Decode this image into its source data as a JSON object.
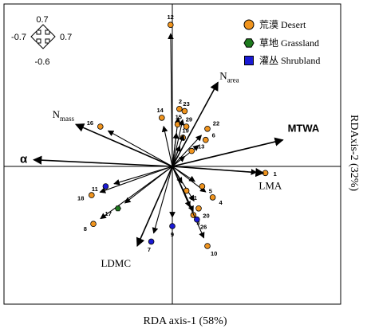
{
  "chart_data": {
    "type": "scatter",
    "subtype": "rda-triplot",
    "xlabel": "RDA axis-1 (58%)",
    "ylabel": "RDAxis-2 (32%)",
    "scale_indicator": {
      "top": "0.7",
      "left": "-0.7",
      "right": "0.7",
      "bottom": "-0.6"
    },
    "xlim": [
      -0.9,
      0.9
    ],
    "ylim": [
      -0.72,
      0.72
    ],
    "legend": {
      "position": "top-right",
      "items": [
        {
          "label": "荒漠 Desert",
          "marker": "circle",
          "color": "#f0941e"
        },
        {
          "label": "草地 Grassland",
          "marker": "hexagon",
          "color": "#1e7a1e"
        },
        {
          "label": "灌丛 Shrubland",
          "marker": "square",
          "color": "#1a1ad4"
        }
      ]
    },
    "trait_vectors": [
      {
        "id": "narea",
        "label": "N",
        "sub": "area",
        "bold": false,
        "x": 0.26,
        "y": 0.38
      },
      {
        "id": "nmass",
        "label": "N",
        "sub": "mass",
        "bold": false,
        "x": -0.55,
        "y": 0.19
      },
      {
        "id": "mtwa",
        "label": "MTWA",
        "sub": "",
        "bold": true,
        "x": 0.63,
        "y": 0.12
      },
      {
        "id": "alpha",
        "label": "α",
        "sub": "",
        "bold": true,
        "x": -0.79,
        "y": 0.03
      },
      {
        "id": "lma",
        "label": "LMA",
        "sub": "",
        "bold": false,
        "x": 0.52,
        "y": -0.03
      },
      {
        "id": "ldmc",
        "label": "LDMC",
        "sub": "",
        "bold": false,
        "x": -0.2,
        "y": -0.36
      }
    ],
    "site_vectors": [
      {
        "label": "1",
        "x": 0.53,
        "y": -0.03,
        "type": "Desert"
      },
      {
        "label": "2",
        "x": 0.04,
        "y": 0.26,
        "type": "Desert"
      },
      {
        "label": "3",
        "x": 0.12,
        "y": -0.22,
        "type": "Desert"
      },
      {
        "label": "4",
        "x": 0.23,
        "y": -0.14,
        "type": "Desert"
      },
      {
        "label": "5",
        "x": 0.17,
        "y": -0.09,
        "type": "Desert"
      },
      {
        "label": "6",
        "x": 0.19,
        "y": 0.12,
        "type": "Desert"
      },
      {
        "label": "7",
        "x": -0.12,
        "y": -0.34,
        "type": "Shrubland"
      },
      {
        "label": "8",
        "x": -0.45,
        "y": -0.26,
        "type": "Desert"
      },
      {
        "label": "9",
        "x": 0.0,
        "y": -0.27,
        "type": "Shrubland"
      },
      {
        "label": "10",
        "x": 0.2,
        "y": -0.36,
        "type": "Desert"
      },
      {
        "label": "11",
        "x": -0.38,
        "y": -0.09,
        "type": "Shrubland"
      },
      {
        "label": "12",
        "x": -0.01,
        "y": 0.64,
        "type": "Desert"
      },
      {
        "label": "13",
        "x": 0.11,
        "y": 0.07,
        "type": "Desert"
      },
      {
        "label": "14",
        "x": -0.06,
        "y": 0.22,
        "type": "Desert"
      },
      {
        "label": "15",
        "x": 0.03,
        "y": 0.19,
        "type": "Desert"
      },
      {
        "label": "16",
        "x": -0.41,
        "y": 0.18,
        "type": "Desert"
      },
      {
        "label": "17",
        "x": -0.31,
        "y": -0.19,
        "type": "Grassland"
      },
      {
        "label": "18",
        "x": -0.46,
        "y": -0.13,
        "type": "Desert"
      },
      {
        "label": "19",
        "x": 0.06,
        "y": 0.13,
        "type": "Desert"
      },
      {
        "label": "20",
        "x": 0.15,
        "y": -0.19,
        "type": "Desert"
      },
      {
        "label": "21",
        "x": 0.08,
        "y": -0.11,
        "type": "Desert"
      },
      {
        "label": "22",
        "x": 0.2,
        "y": 0.17,
        "type": "Desert"
      },
      {
        "label": "23",
        "x": 0.07,
        "y": 0.25,
        "type": "Desert"
      },
      {
        "label": "26",
        "x": 0.14,
        "y": -0.24,
        "type": "Shrubland"
      },
      {
        "label": "29",
        "x": 0.08,
        "y": 0.18,
        "type": "Desert"
      }
    ]
  }
}
